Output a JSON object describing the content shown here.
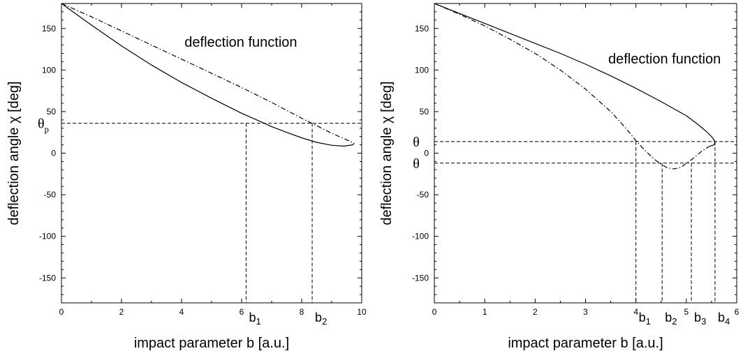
{
  "chart_data": [
    {
      "type": "line",
      "xlabel": "impact parameter b [a.u.]",
      "ylabel": "deflection angle χ [deg]",
      "annotation": "deflection function",
      "xlim": [
        0,
        10
      ],
      "ylim": [
        -180,
        180
      ],
      "xticks": [
        0,
        2,
        4,
        6,
        8,
        10
      ],
      "yticks": [
        150,
        100,
        50,
        0,
        -50,
        -100,
        -150
      ],
      "grid": false,
      "series": [
        {
          "style": "solid",
          "points": [
            [
              0,
              180
            ],
            [
              1,
              154
            ],
            [
              2,
              129
            ],
            [
              3,
              106
            ],
            [
              4,
              85
            ],
            [
              5,
              66
            ],
            [
              6,
              48
            ],
            [
              6.5,
              40
            ],
            [
              7,
              32
            ],
            [
              7.5,
              25
            ],
            [
              8,
              18.5
            ],
            [
              8.5,
              13
            ],
            [
              9,
              9.5
            ],
            [
              9.4,
              8.5
            ],
            [
              9.7,
              10
            ],
            [
              9.75,
              12
            ]
          ]
        },
        {
          "style": "dashdot",
          "points": [
            [
              0,
              180
            ],
            [
              1,
              164
            ],
            [
              2,
              147
            ],
            [
              3,
              130
            ],
            [
              4,
              113
            ],
            [
              5,
              96
            ],
            [
              6,
              79
            ],
            [
              7,
              61
            ],
            [
              8,
              42
            ],
            [
              8.5,
              33
            ],
            [
              9,
              24
            ],
            [
              9.5,
              16
            ],
            [
              9.75,
              12
            ]
          ]
        }
      ],
      "reference_lines": [
        {
          "orientation": "horizontal",
          "value": 36,
          "label": "θ",
          "sub": "p"
        },
        {
          "orientation": "vertical",
          "value": 6.15,
          "label": "b",
          "sub": "1"
        },
        {
          "orientation": "vertical",
          "value": 8.35,
          "label": "b",
          "sub": "2"
        }
      ]
    },
    {
      "type": "line",
      "xlabel": "impact parameter b [a.u.]",
      "ylabel": "deflection angle χ [deg]",
      "annotation": "deflection function",
      "xlim": [
        0,
        6
      ],
      "ylim": [
        -180,
        180
      ],
      "xticks": [
        0,
        1,
        2,
        3,
        4,
        5,
        6
      ],
      "yticks": [
        150,
        100,
        50,
        0,
        -50,
        -100,
        -150
      ],
      "grid": false,
      "series": [
        {
          "style": "solid",
          "points": [
            [
              0,
              180
            ],
            [
              0.5,
              168
            ],
            [
              1,
              156
            ],
            [
              1.5,
              144
            ],
            [
              2,
              132
            ],
            [
              2.5,
              120
            ],
            [
              3,
              107
            ],
            [
              3.5,
              93
            ],
            [
              4,
              78
            ],
            [
              4.5,
              62
            ],
            [
              5,
              45
            ],
            [
              5.2,
              36
            ],
            [
              5.4,
              26
            ],
            [
              5.5,
              20
            ],
            [
              5.55,
              16
            ],
            [
              5.57,
              13
            ],
            [
              5.55,
              10
            ],
            [
              5.45,
              8
            ]
          ]
        },
        {
          "style": "dashdot",
          "points": [
            [
              0,
              180
            ],
            [
              0.5,
              167
            ],
            [
              1,
              153
            ],
            [
              1.5,
              137
            ],
            [
              2,
              120
            ],
            [
              2.5,
              100
            ],
            [
              3,
              77
            ],
            [
              3.5,
              50
            ],
            [
              3.8,
              30
            ],
            [
              4,
              15
            ],
            [
              4.2,
              2
            ],
            [
              4.4,
              -9
            ],
            [
              4.6,
              -17
            ],
            [
              4.75,
              -19
            ],
            [
              4.9,
              -17
            ],
            [
              5,
              -12
            ],
            [
              5.1,
              -8
            ],
            [
              5.2,
              -3
            ],
            [
              5.3,
              2
            ],
            [
              5.4,
              6
            ],
            [
              5.45,
              8
            ]
          ]
        }
      ],
      "reference_lines": [
        {
          "orientation": "horizontal",
          "value": 14,
          "label": "θ",
          "sub": ""
        },
        {
          "orientation": "horizontal",
          "value": -12,
          "label": "θ",
          "sub": ""
        },
        {
          "orientation": "vertical",
          "value": 4.0,
          "label": "b",
          "sub": "1"
        },
        {
          "orientation": "vertical",
          "value": 4.52,
          "label": "b",
          "sub": "2"
        },
        {
          "orientation": "vertical",
          "value": 5.1,
          "label": "b",
          "sub": "3"
        },
        {
          "orientation": "vertical",
          "value": 5.57,
          "label": "b",
          "sub": "4"
        }
      ]
    }
  ]
}
